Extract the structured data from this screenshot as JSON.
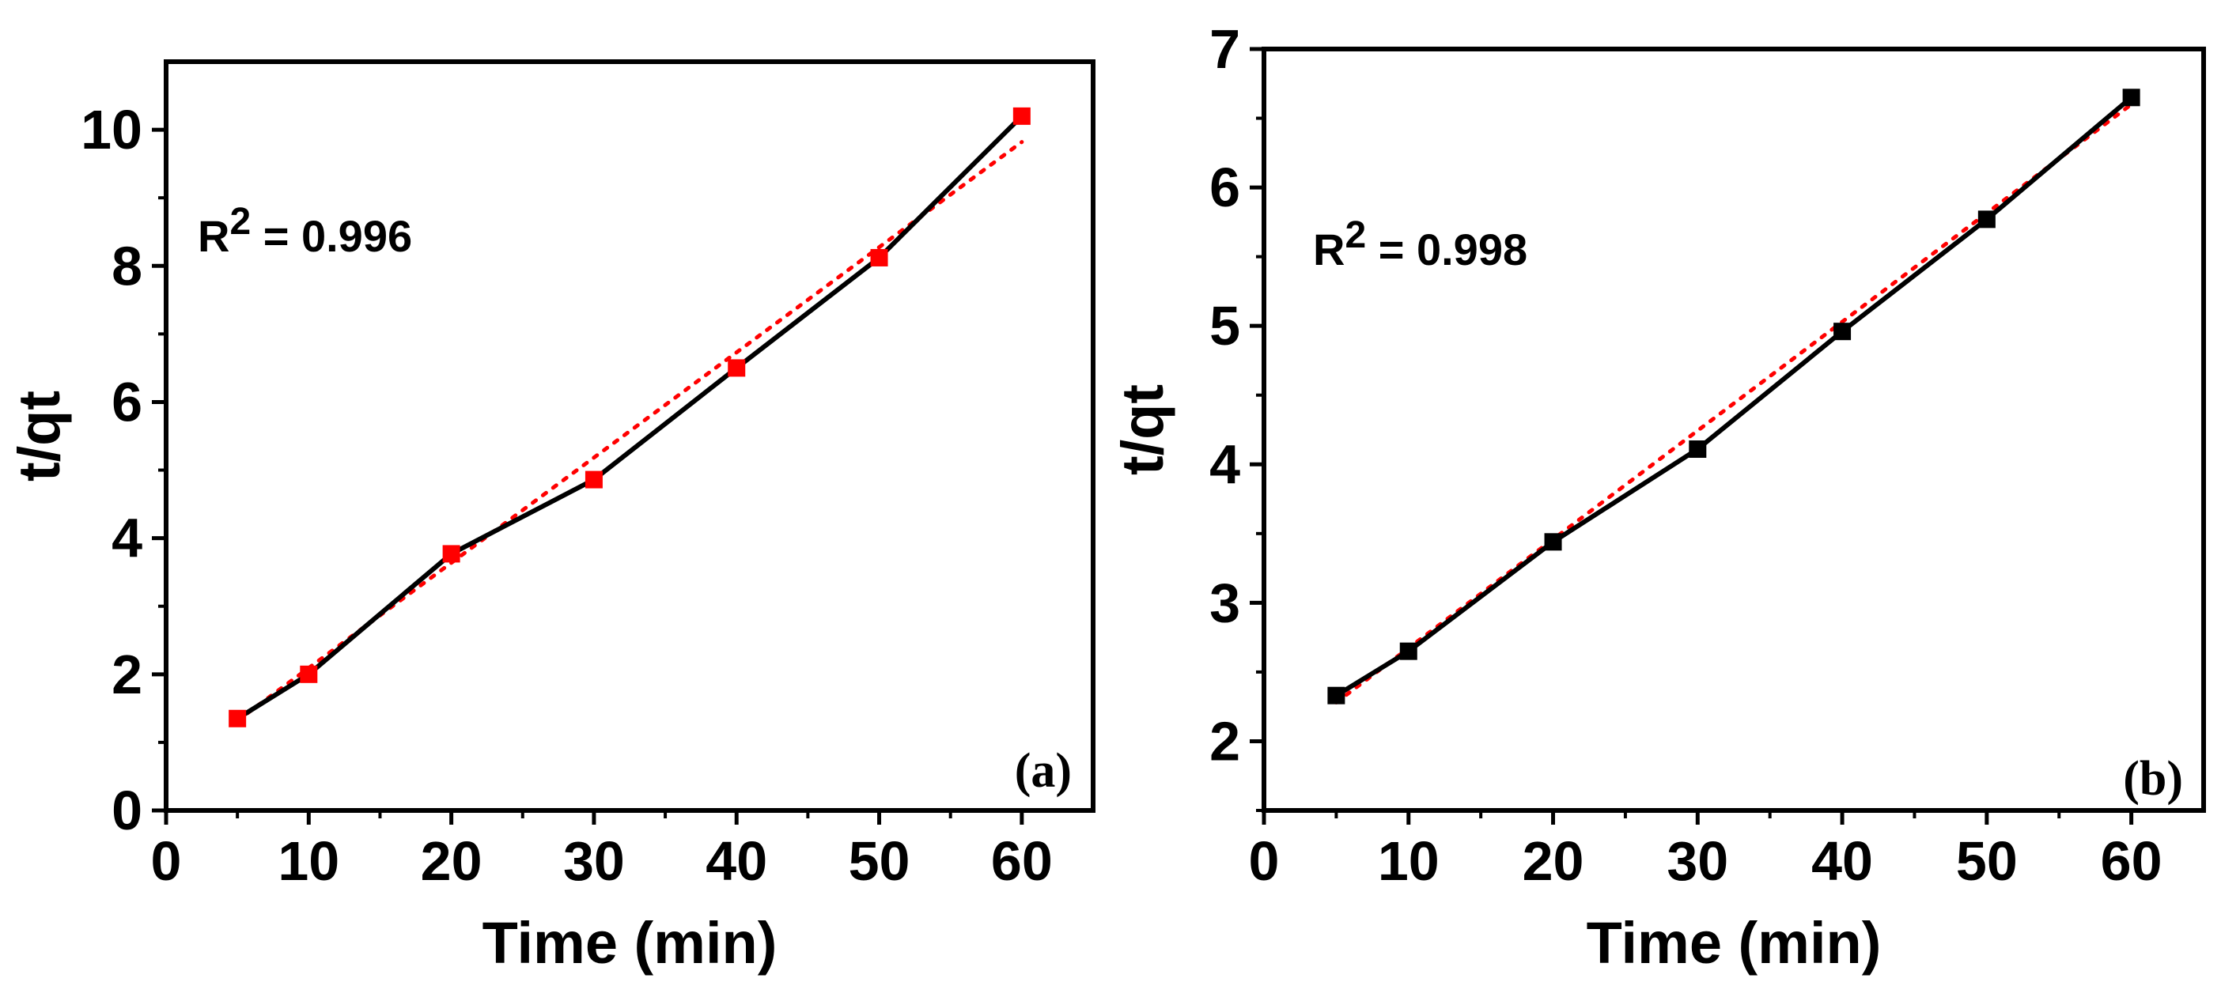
{
  "chart_data": [
    {
      "type": "line",
      "panel_label": "(a)",
      "xlabel": "Time (min)",
      "ylabel": "t/qt",
      "xlim": [
        0,
        65
      ],
      "ylim": [
        0,
        11
      ],
      "xticks": [
        0,
        10,
        20,
        30,
        40,
        50,
        60
      ],
      "yticks": [
        0,
        2,
        4,
        6,
        8,
        10
      ],
      "annotation": {
        "base": "R",
        "sup": "2",
        "rest": " = 0.996"
      },
      "series": [
        {
          "name": "data",
          "x": [
            5,
            10,
            20,
            30,
            40,
            50,
            60
          ],
          "y": [
            1.35,
            2.0,
            3.77,
            4.86,
            6.5,
            8.12,
            10.2
          ],
          "line_color": "#000000",
          "marker_color": "#ff0000",
          "marker": "square"
        },
        {
          "name": "linear fit",
          "x": [
            5,
            60
          ],
          "y": [
            1.32,
            9.82
          ],
          "line_color": "#ff0000",
          "style": "dotted"
        }
      ]
    },
    {
      "type": "line",
      "panel_label": "(b)",
      "xlabel": "Time (min)",
      "ylabel": "t/qt",
      "xlim": [
        0,
        65
      ],
      "ylim": [
        1.5,
        7
      ],
      "xticks": [
        0,
        10,
        20,
        30,
        40,
        50,
        60
      ],
      "yticks": [
        2,
        3,
        4,
        5,
        6,
        7
      ],
      "annotation": {
        "base": "R",
        "sup": "2",
        "rest": " = 0.998"
      },
      "series": [
        {
          "name": "data",
          "x": [
            5,
            10,
            20,
            30,
            40,
            50,
            60
          ],
          "y": [
            2.33,
            2.65,
            3.44,
            4.11,
            4.96,
            5.77,
            6.65
          ],
          "line_color": "#000000",
          "marker_color": "#000000",
          "marker": "square"
        },
        {
          "name": "linear fit",
          "x": [
            5,
            60
          ],
          "y": [
            2.28,
            6.6
          ],
          "line_color": "#ff0000",
          "style": "dotted"
        }
      ]
    }
  ]
}
